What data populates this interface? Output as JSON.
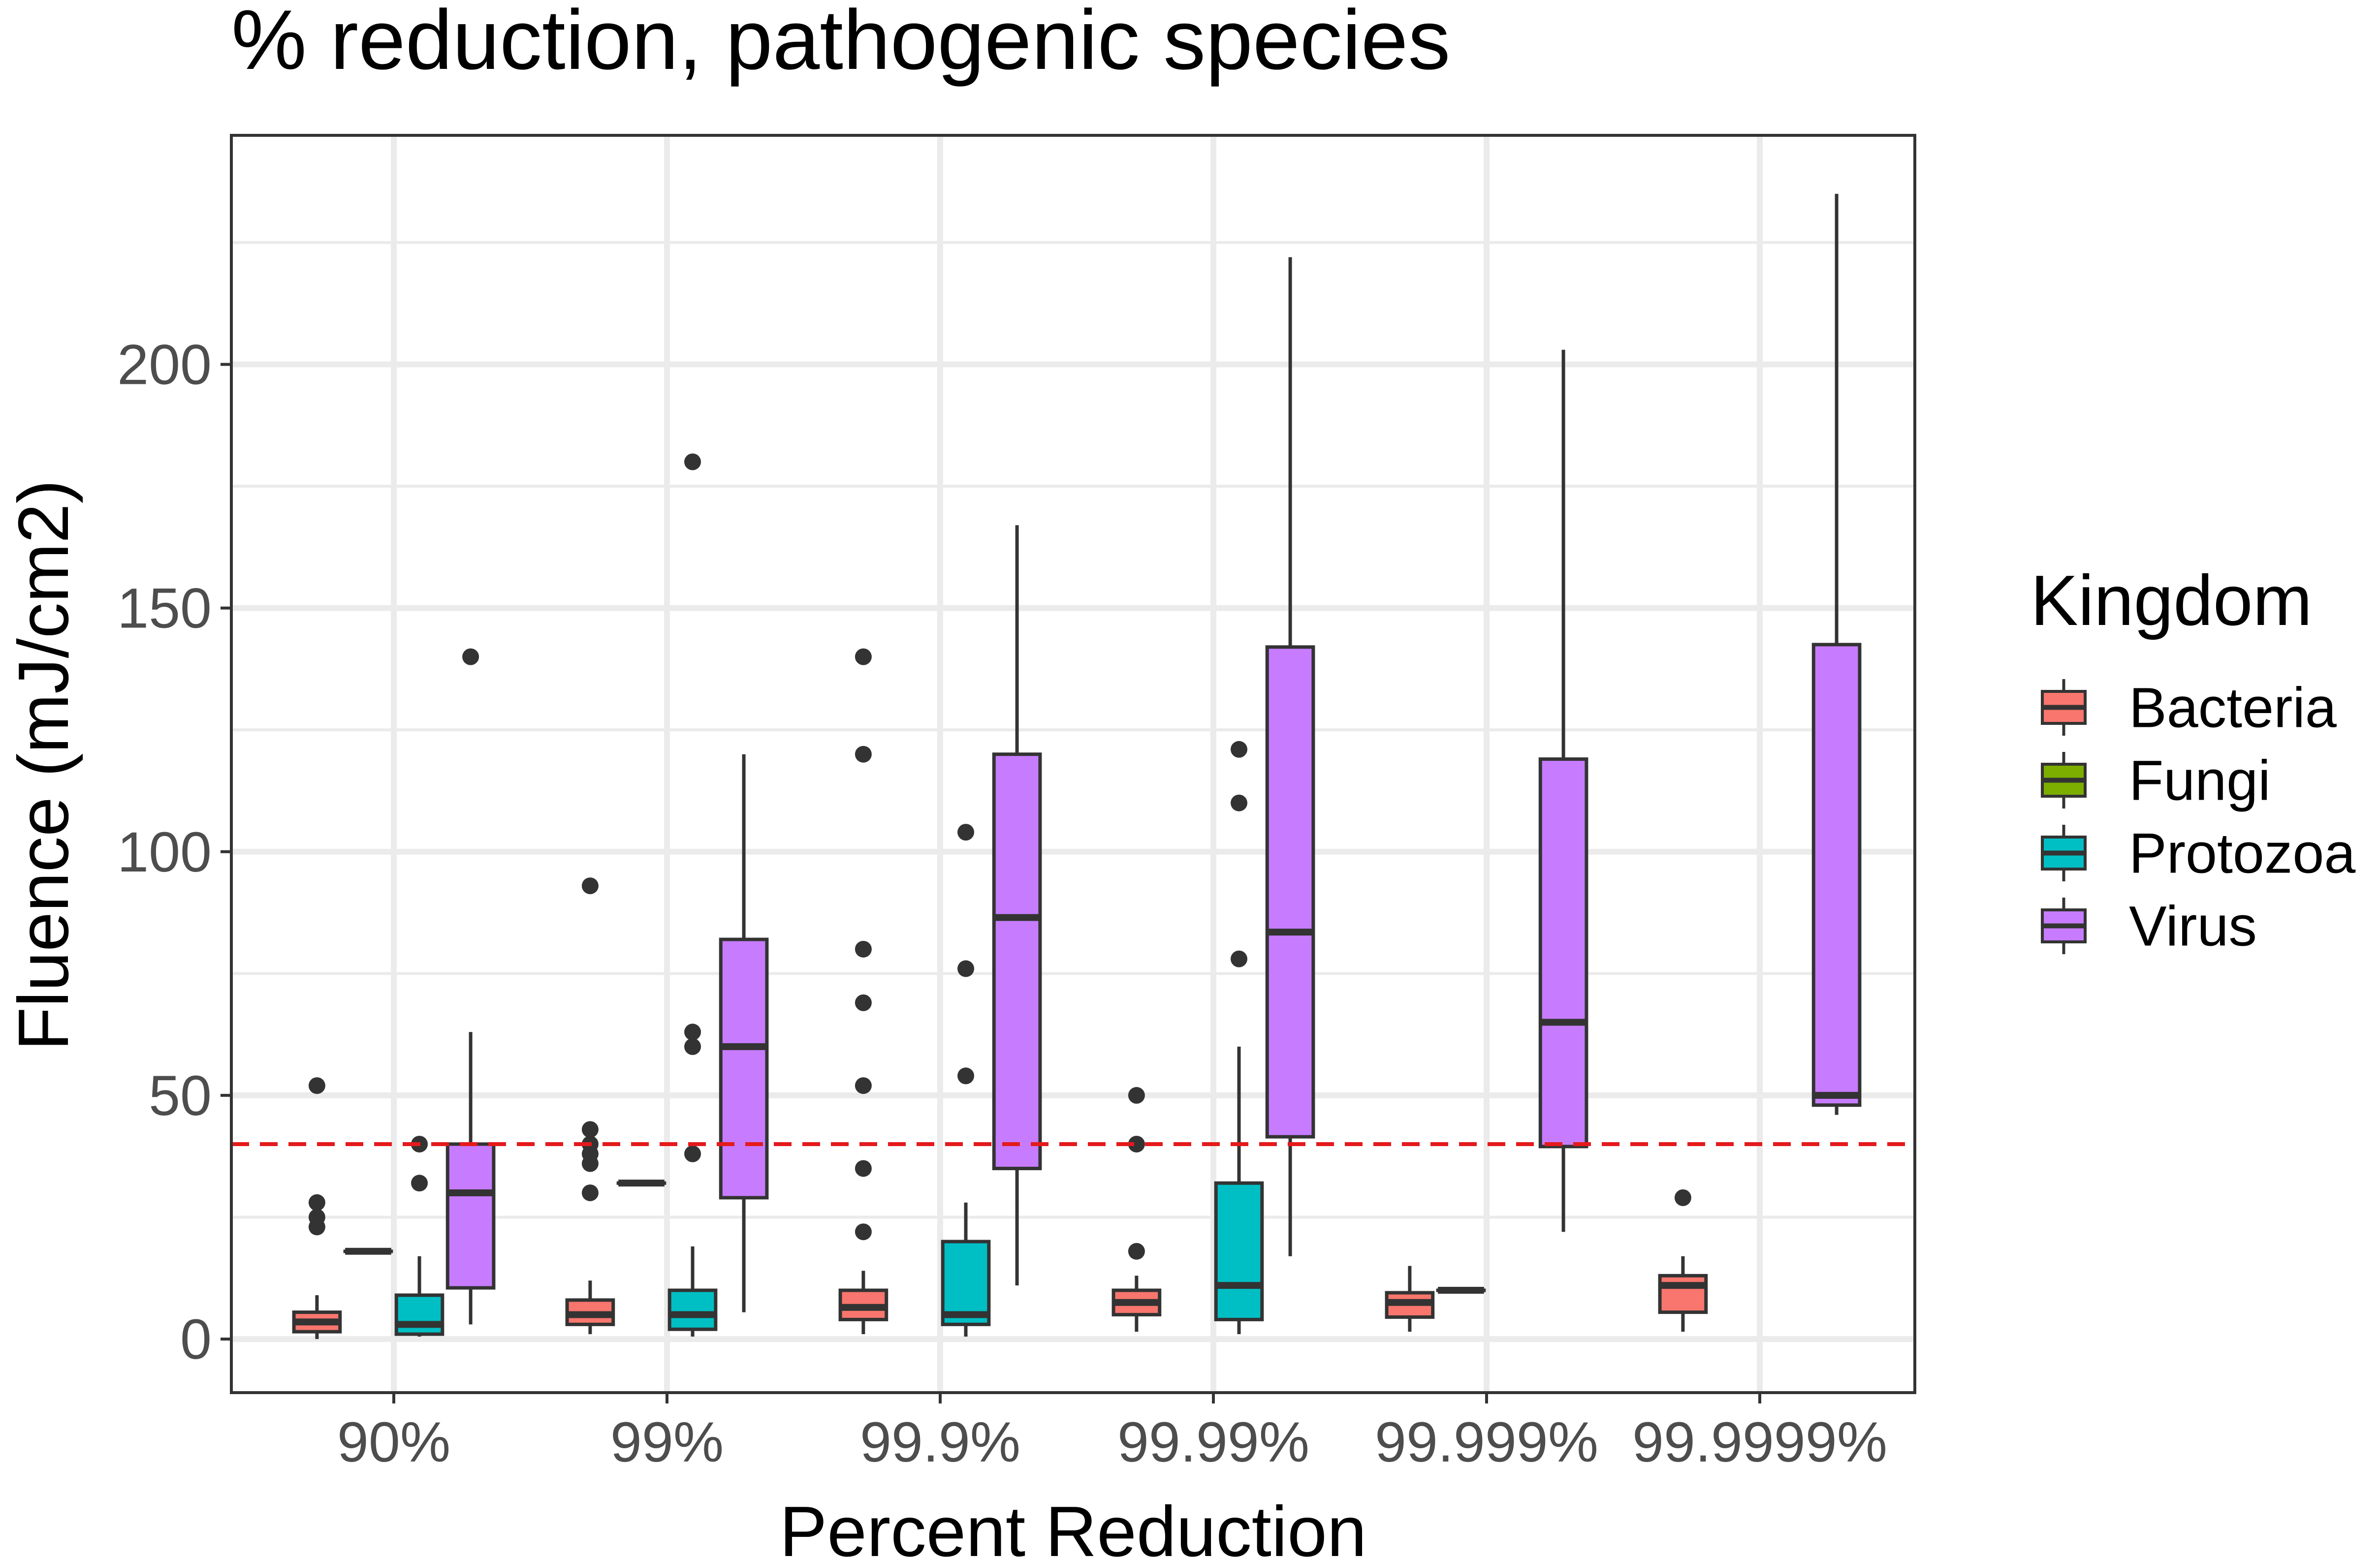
{
  "chart_data": {
    "type": "boxplot",
    "title": "% reduction, pathogenic species",
    "xlabel": "Percent Reduction",
    "ylabel": "Fluence (mJ/cm2)",
    "ylim": [
      -11,
      247
    ],
    "yticks": [
      0,
      50,
      100,
      150,
      200
    ],
    "categories": [
      "90%",
      "99%",
      "99.9%",
      "99.99%",
      "99.999%",
      "99.9999%"
    ],
    "grid": true,
    "legend": {
      "title": "Kingdom",
      "placement": "right",
      "entries": [
        "Bacteria",
        "Fungi",
        "Protozoa",
        "Virus"
      ]
    },
    "reference_line": {
      "y": 40,
      "color": "#e41a1c",
      "style": "dashed"
    },
    "colors": {
      "Bacteria": "#F8766D",
      "Fungi": "#7CAE00",
      "Protozoa": "#00BFC4",
      "Virus": "#C77CFF"
    },
    "series": [
      {
        "name": "Bacteria",
        "boxes": [
          {
            "category": "90%",
            "min": 0,
            "q1": 1.5,
            "median": 3.5,
            "q3": 5.5,
            "max": 9,
            "outliers": [
              23,
              25,
              28,
              52
            ]
          },
          {
            "category": "99%",
            "min": 1,
            "q1": 3,
            "median": 5,
            "q3": 8,
            "max": 12,
            "outliers": [
              30,
              36,
              38,
              40,
              43,
              93
            ]
          },
          {
            "category": "99.9%",
            "min": 1,
            "q1": 4,
            "median": 6.5,
            "q3": 10,
            "max": 14,
            "outliers": [
              22,
              35,
              52,
              69,
              80,
              120,
              140
            ]
          },
          {
            "category": "99.99%",
            "min": 1.5,
            "q1": 5,
            "median": 7.5,
            "q3": 10,
            "max": 13,
            "outliers": [
              18,
              40,
              50
            ]
          },
          {
            "category": "99.999%",
            "min": 1.5,
            "q1": 4.5,
            "median": 7.5,
            "q3": 9.5,
            "max": 15,
            "outliers": []
          },
          {
            "category": "99.9999%",
            "min": 1.5,
            "q1": 5.5,
            "median": 11,
            "q3": 13,
            "max": 17,
            "outliers": [
              29
            ]
          }
        ]
      },
      {
        "name": "Fungi",
        "boxes": [
          {
            "category": "90%",
            "min": 18,
            "q1": 18,
            "median": 18,
            "q3": 18,
            "max": 18,
            "outliers": []
          },
          {
            "category": "99%",
            "min": 32,
            "q1": 32,
            "median": 32,
            "q3": 32,
            "max": 32,
            "outliers": []
          },
          {
            "category": "99.999%",
            "min": 10,
            "q1": 10,
            "median": 10,
            "q3": 10,
            "max": 10,
            "outliers": []
          }
        ]
      },
      {
        "name": "Protozoa",
        "boxes": [
          {
            "category": "90%",
            "min": 0.5,
            "q1": 1,
            "median": 3,
            "q3": 9,
            "max": 17,
            "outliers": [
              32,
              40
            ]
          },
          {
            "category": "99%",
            "min": 0.5,
            "q1": 2,
            "median": 5,
            "q3": 10,
            "max": 19,
            "outliers": [
              38,
              60,
              63,
              180
            ]
          },
          {
            "category": "99.9%",
            "min": 0.5,
            "q1": 3,
            "median": 5,
            "q3": 20,
            "max": 28,
            "outliers": [
              54,
              76,
              104
            ]
          },
          {
            "category": "99.99%",
            "min": 1,
            "q1": 4,
            "median": 11,
            "q3": 32,
            "max": 60,
            "outliers": [
              78,
              110,
              121
            ]
          }
        ]
      },
      {
        "name": "Virus",
        "boxes": [
          {
            "category": "90%",
            "min": 3,
            "q1": 10.5,
            "median": 30,
            "q3": 40,
            "max": 63,
            "outliers": [
              140
            ]
          },
          {
            "category": "99%",
            "min": 5.5,
            "q1": 29,
            "median": 60,
            "q3": 82,
            "max": 120,
            "outliers": []
          },
          {
            "category": "99.9%",
            "min": 11,
            "q1": 35,
            "median": 86.5,
            "q3": 120,
            "max": 167,
            "outliers": []
          },
          {
            "category": "99.99%",
            "min": 17,
            "q1": 41.5,
            "median": 83.5,
            "q3": 142,
            "max": 222,
            "outliers": []
          },
          {
            "category": "99.999%",
            "min": 22,
            "q1": 39.5,
            "median": 65,
            "q3": 119,
            "max": 203,
            "outliers": []
          },
          {
            "category": "99.9999%",
            "min": 46,
            "q1": 48,
            "median": 50,
            "q3": 142.5,
            "max": 235,
            "outliers": []
          }
        ]
      }
    ]
  }
}
